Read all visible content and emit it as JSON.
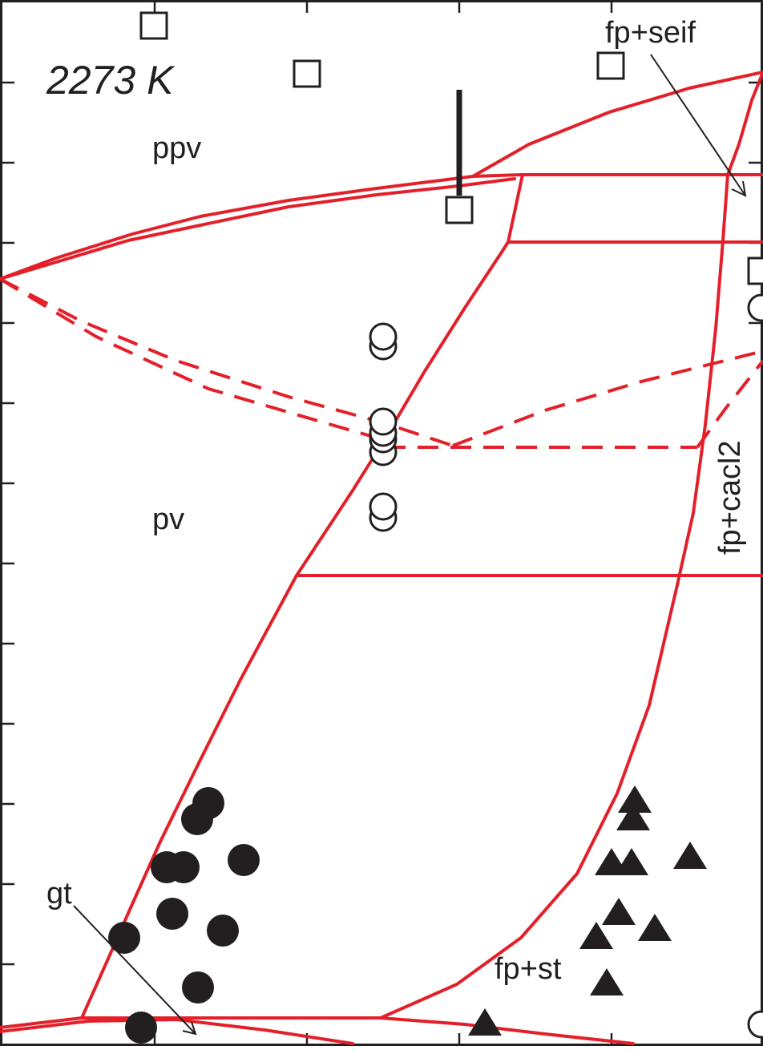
{
  "diagram": {
    "temperature_label": "2273 K",
    "phase_labels": {
      "ppv": "ppv",
      "pv": "pv",
      "fp_seif": "fp+seif",
      "fp_cacl2": "fp+cacl2",
      "fp_st": "fp+st",
      "gt": "gt"
    },
    "colors": {
      "phase_boundary": "#e3202a",
      "ink": "#231f20"
    },
    "marker_legend": {
      "open_square": "square-open",
      "open_circle": "circle-open",
      "filled_circle": "circle-filled",
      "filled_triangle": "triangle-filled"
    }
  }
}
